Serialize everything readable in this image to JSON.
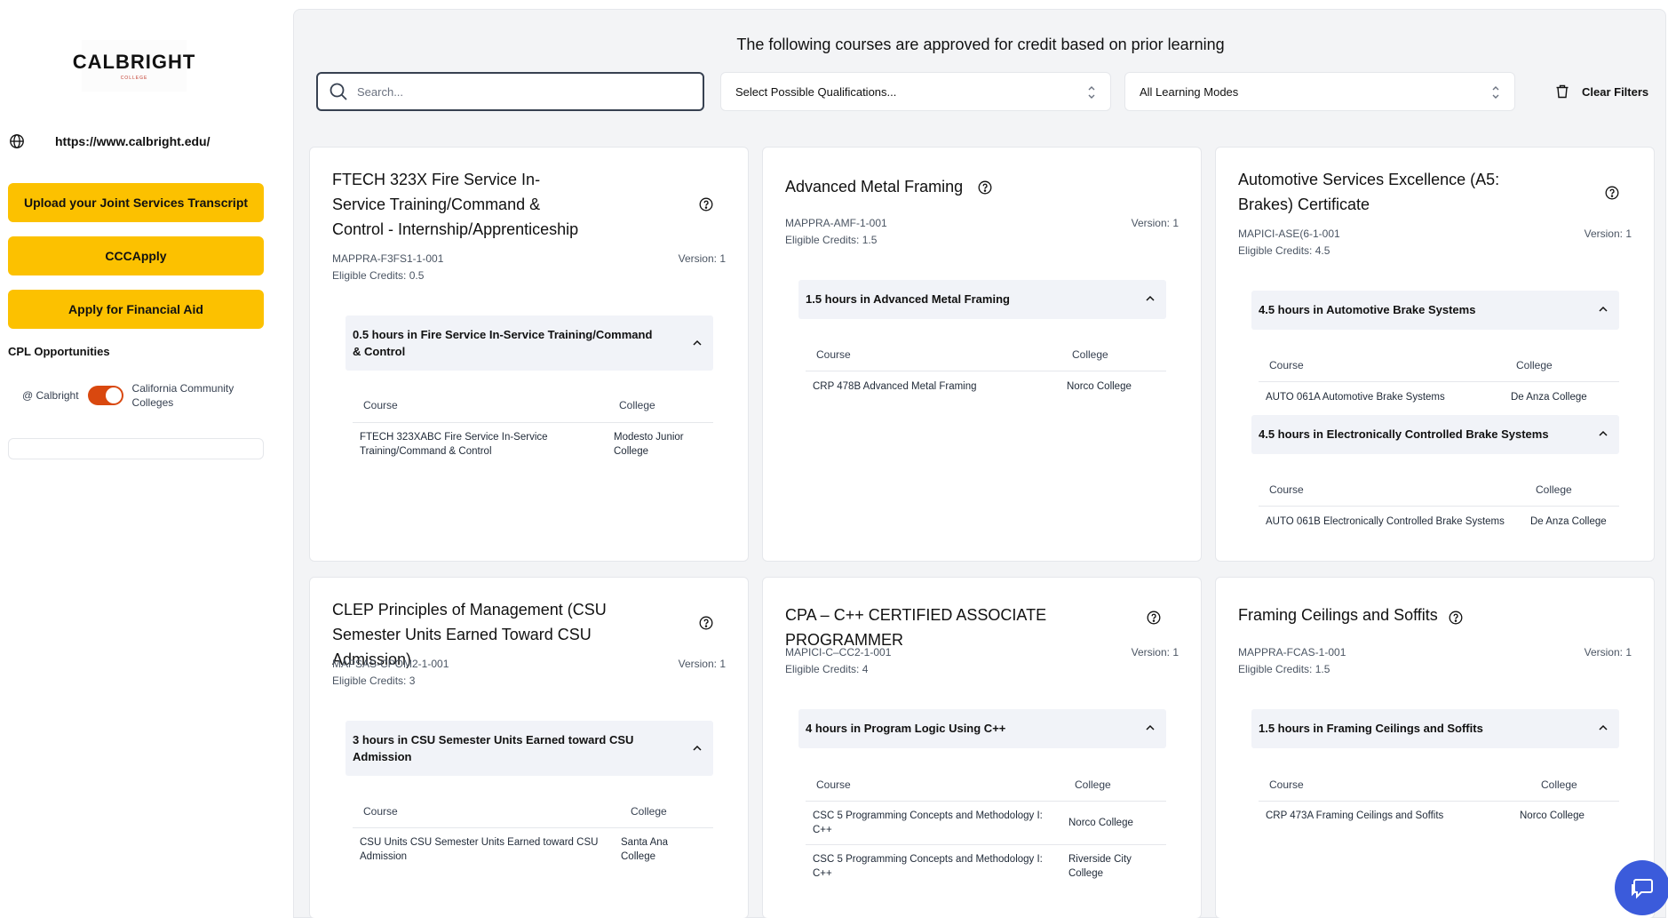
{
  "sidebar": {
    "logo_text": "CALBRIGHT",
    "logo_sub": "COLLEGE",
    "site_url": "https://www.calbright.edu/",
    "buttons": {
      "upload": "Upload your Joint Services Transcript",
      "cccapply": "CCCApply",
      "financial_aid": "Apply for Financial Aid"
    },
    "cpl_title": "CPL Opportunities",
    "toggle": {
      "left_label": "@ Calbright",
      "right_label": "California Community Colleges",
      "state": "on"
    }
  },
  "main": {
    "title": "The following courses are approved for credit based on prior learning",
    "search_placeholder": "Search...",
    "qualifications_select": "Select Possible Qualifications...",
    "learning_modes_select": "All Learning Modes",
    "clear_filters": "Clear Filters"
  },
  "table_headers": {
    "course": "Course",
    "college": "College"
  },
  "cards": [
    {
      "title": "FTECH 323X Fire Service In-Service Training/Command & Control - Internship/Apprenticeship",
      "code": "MAPPRA-F3FS1-1-001",
      "version": "Version: 1",
      "credits": "Eligible Credits: 0.5",
      "sections": [
        {
          "heading": "0.5 hours in Fire Service In-Service Training/Command & Control",
          "rows": [
            {
              "course": "FTECH 323XABC Fire Service In-Service Training/Command & Control",
              "college": "Modesto Junior College"
            }
          ]
        }
      ]
    },
    {
      "title": "Advanced Metal Framing",
      "code": "MAPPRA-AMF-1-001",
      "version": "Version: 1",
      "credits": "Eligible Credits: 1.5",
      "sections": [
        {
          "heading": "1.5 hours in Advanced Metal Framing",
          "rows": [
            {
              "course": "CRP 478B Advanced Metal Framing",
              "college": "Norco College"
            }
          ]
        }
      ]
    },
    {
      "title": "Automotive Services Excellence (A5: Brakes) Certificate",
      "code": "MAPICI-ASE(6-1-001",
      "version": "Version: 1",
      "credits": "Eligible Credits: 4.5",
      "sections": [
        {
          "heading": "4.5 hours in Automotive Brake Systems",
          "rows": [
            {
              "course": "AUTO 061A Automotive Brake Systems",
              "college": "De Anza College"
            }
          ]
        },
        {
          "heading": "4.5 hours in Electronically Controlled Brake Systems",
          "rows": [
            {
              "course": "AUTO 061B Electronically Controlled Brake Systems",
              "college": "De Anza College"
            }
          ]
        }
      ]
    },
    {
      "title": "CLEP Principles of Management (CSU Semester Units Earned Toward CSU Admission)",
      "code": "MAPSAS-CPOM2-1-001",
      "version": "Version: 1",
      "credits": "Eligible Credits: 3",
      "sections": [
        {
          "heading": "3 hours in CSU Semester Units Earned toward CSU Admission",
          "rows": [
            {
              "course": "CSU Units CSU Semester Units Earned toward CSU Admission",
              "college": "Santa Ana College"
            }
          ]
        }
      ]
    },
    {
      "title": "CPA – C++ CERTIFIED ASSOCIATE PROGRAMMER",
      "code": "MAPICI-C–CC2-1-001",
      "version": "Version: 1",
      "credits": "Eligible Credits: 4",
      "sections": [
        {
          "heading": "4 hours in Program Logic Using C++",
          "rows": [
            {
              "course": "CSC 5 Programming Concepts and Methodology I: C++",
              "college": "Norco College"
            },
            {
              "course": "CSC 5 Programming Concepts and Methodology I: C++",
              "college": "Riverside City College"
            }
          ]
        }
      ]
    },
    {
      "title": "Framing Ceilings and Soffits",
      "code": "MAPPRA-FCAS-1-001",
      "version": "Version: 1",
      "credits": "Eligible Credits: 1.5",
      "sections": [
        {
          "heading": "1.5 hours in Framing Ceilings and Soffits",
          "rows": [
            {
              "course": "CRP 473A Framing Ceilings and Soffits",
              "college": "Norco College"
            }
          ]
        }
      ]
    }
  ],
  "colors": {
    "accent_yellow": "#fcc100",
    "toggle_orange": "#d9480f",
    "chat_blue": "#3b5bdb"
  },
  "icons": [
    "globe-icon",
    "search-icon",
    "chevron-updown-icon",
    "trash-icon",
    "help-circle-icon",
    "chevron-up-icon",
    "chat-icon"
  ]
}
